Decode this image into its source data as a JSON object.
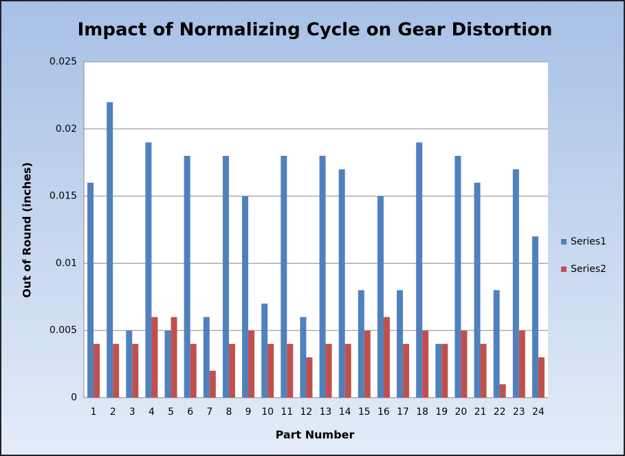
{
  "chart_data": {
    "type": "bar",
    "title": "Impact of Normalizing Cycle on Gear Distortion",
    "x_label": "Part Number",
    "y_label": "Out of Round (inches)",
    "categories": [
      "1",
      "2",
      "3",
      "4",
      "5",
      "6",
      "7",
      "8",
      "9",
      "10",
      "11",
      "12",
      "13",
      "14",
      "15",
      "16",
      "17",
      "18",
      "19",
      "20",
      "21",
      "22",
      "23",
      "24"
    ],
    "series": [
      {
        "name": "Series1",
        "color": "#4f81bd",
        "values": [
          0.016,
          0.022,
          0.005,
          0.019,
          0.005,
          0.018,
          0.006,
          0.018,
          0.015,
          0.007,
          0.018,
          0.006,
          0.018,
          0.017,
          0.008,
          0.015,
          0.008,
          0.019,
          0.004,
          0.018,
          0.016,
          0.008,
          0.017,
          0.012
        ]
      },
      {
        "name": "Series2",
        "color": "#c0504d",
        "values": [
          0.004,
          0.004,
          0.004,
          0.006,
          0.006,
          0.004,
          0.002,
          0.004,
          0.005,
          0.004,
          0.004,
          0.003,
          0.004,
          0.004,
          0.005,
          0.006,
          0.004,
          0.005,
          0.004,
          0.005,
          0.004,
          0.001,
          0.005,
          0.003
        ]
      }
    ],
    "ylim": [
      0,
      0.025
    ],
    "yticks": [
      0,
      0.005,
      0.01,
      0.015,
      0.02,
      0.025
    ],
    "grid": true,
    "legend": "right"
  }
}
